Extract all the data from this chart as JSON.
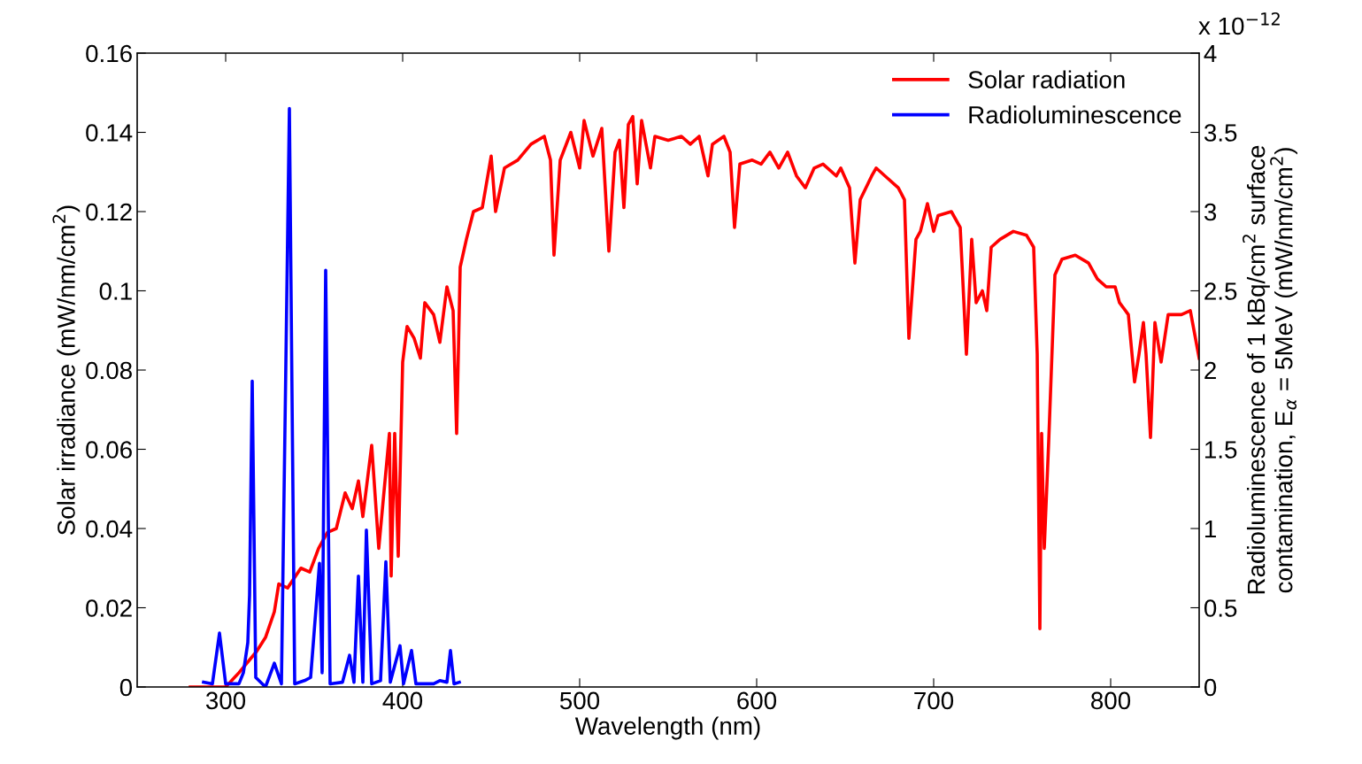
{
  "chart_data": {
    "type": "line",
    "xlabel": "Wavelength (nm)",
    "ylabel": "Solar irradiance (mW/nm/cm$^{2}$)",
    "y2label": "Radioluminescence of 1 kBq/cm$^{2}$ surface\ncontamination, E$_{α}$ = 5MeV (mW/nm/cm$^{2}$)",
    "annotations": [
      "x 10$^{−12}$"
    ],
    "xlim": [
      250,
      850
    ],
    "xticks": [
      300,
      400,
      500,
      600,
      700,
      800
    ],
    "ylim": [
      0,
      0.16
    ],
    "yticks": [
      0,
      0.02,
      0.04,
      0.06,
      0.08,
      0.1,
      0.12,
      0.14,
      0.16
    ],
    "y2lim": [
      0,
      4
    ],
    "y2ticks": [
      0,
      0.5,
      1,
      1.5,
      2,
      2.5,
      3,
      3.5,
      4
    ],
    "legend": "top right",
    "grid": false,
    "marker": "none",
    "line_style": "solid",
    "series": [
      {
        "name": "Solar radiation",
        "color": "#ff0000",
        "x": [
          280,
          300,
          307.5,
          317.5,
          322.5,
          327.5,
          330,
          335,
          342.5,
          347.5,
          352.5,
          357.5,
          362.5,
          367.5,
          371.5,
          375,
          377.5,
          382.5,
          386.5,
          392.5,
          393.5,
          395.5,
          397.5,
          400,
          402.5,
          406.5,
          410,
          412.5,
          417.5,
          421,
          425,
          428.5,
          430.5,
          432.5,
          436,
          440,
          445,
          450,
          452.5,
          457.5,
          465,
          472.5,
          480,
          483.5,
          485.5,
          489,
          495,
          500,
          502.5,
          507.5,
          512.5,
          516.5,
          520,
          522.5,
          525,
          527.5,
          530,
          532.5,
          535,
          540,
          542.5,
          550,
          557.5,
          562.5,
          567.5,
          572.5,
          575,
          581.5,
          585,
          587.5,
          590.5,
          597.5,
          602.5,
          607.5,
          612.5,
          617.5,
          622.5,
          627.5,
          632.5,
          637.5,
          645,
          647.5,
          652.5,
          655.5,
          658.5,
          665,
          667.5,
          672.5,
          680,
          683.5,
          686,
          690,
          692.5,
          696.5,
          700,
          702.5,
          710,
          715,
          718.5,
          721.5,
          724,
          727.5,
          730,
          732.5,
          737.5,
          745,
          752.5,
          756.5,
          758.5,
          760,
          761,
          762.5,
          765,
          768.5,
          772.5,
          780,
          787.5,
          792.5,
          797.5,
          802.5,
          805,
          810,
          813.5,
          816,
          818.5,
          820,
          822.5,
          825,
          828.5,
          832.5,
          840,
          845,
          850
        ],
        "values": [
          0,
          0,
          0.0036,
          0.009,
          0.0125,
          0.019,
          0.026,
          0.025,
          0.03,
          0.029,
          0.035,
          0.039,
          0.04,
          0.049,
          0.045,
          0.052,
          0.043,
          0.061,
          0.035,
          0.064,
          0.028,
          0.064,
          0.033,
          0.082,
          0.091,
          0.088,
          0.083,
          0.097,
          0.094,
          0.087,
          0.101,
          0.095,
          0.064,
          0.106,
          0.113,
          0.12,
          0.121,
          0.134,
          0.12,
          0.131,
          0.133,
          0.137,
          0.139,
          0.133,
          0.109,
          0.133,
          0.14,
          0.131,
          0.143,
          0.134,
          0.141,
          0.11,
          0.135,
          0.138,
          0.121,
          0.142,
          0.144,
          0.127,
          0.143,
          0.131,
          0.139,
          0.138,
          0.139,
          0.137,
          0.139,
          0.129,
          0.137,
          0.139,
          0.135,
          0.116,
          0.132,
          0.133,
          0.132,
          0.135,
          0.131,
          0.135,
          0.129,
          0.126,
          0.131,
          0.132,
          0.129,
          0.131,
          0.126,
          0.107,
          0.123,
          0.129,
          0.131,
          0.129,
          0.126,
          0.123,
          0.088,
          0.113,
          0.115,
          0.122,
          0.115,
          0.119,
          0.12,
          0.116,
          0.084,
          0.113,
          0.097,
          0.1,
          0.095,
          0.111,
          0.113,
          0.115,
          0.114,
          0.111,
          0.084,
          0.0147,
          0.064,
          0.035,
          0.062,
          0.104,
          0.108,
          0.109,
          0.107,
          0.103,
          0.101,
          0.101,
          0.097,
          0.094,
          0.077,
          0.084,
          0.092,
          0.084,
          0.063,
          0.092,
          0.082,
          0.094,
          0.094,
          0.095,
          0.083
        ]
      },
      {
        "name": "Radioluminescence",
        "color": "#0000ff",
        "axis": "y2",
        "x": [
          287.5,
          292.5,
          296.5,
          300,
          307.5,
          310,
          312.5,
          313.5,
          315,
          317,
          322.5,
          327.5,
          331.5,
          336,
          339,
          344.5,
          348,
          353,
          354.5,
          356.5,
          359,
          366,
          370,
          372.5,
          375,
          377.5,
          379.5,
          382.5,
          387.5,
          390.5,
          393,
          398.5,
          400.5,
          405,
          407.5,
          417.5,
          421,
          425,
          427,
          429,
          432
        ],
        "values": [
          0.03,
          0.02,
          0.34,
          0.02,
          0.02,
          0.09,
          0.28,
          0.58,
          1.93,
          0.06,
          0,
          0.15,
          0.02,
          3.65,
          0.02,
          0.04,
          0.06,
          0.78,
          0.09,
          2.63,
          0.02,
          0.03,
          0.2,
          0.03,
          0.7,
          0.03,
          0.99,
          0.02,
          0.04,
          0.79,
          0.03,
          0.26,
          0.02,
          0.23,
          0.02,
          0.02,
          0.04,
          0.03,
          0.23,
          0.02,
          0.03
        ]
      }
    ]
  }
}
